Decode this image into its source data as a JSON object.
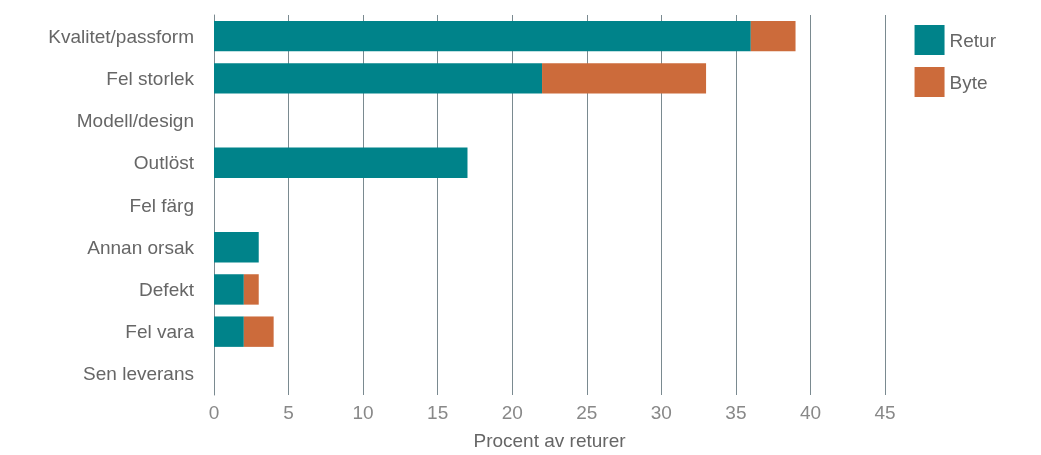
{
  "chart_data": {
    "type": "bar",
    "orientation": "horizontal",
    "stacked": true,
    "xlabel": "Procent av returer",
    "categories": [
      "Kvalitet/passform",
      "Fel storlek",
      "Modell/design",
      "Outlöst",
      "Fel färg",
      "Annan orsak",
      "Defekt",
      "Fel vara",
      "Sen leverans"
    ],
    "series": [
      {
        "name": "Retur",
        "color": "#00838a",
        "values": [
          36,
          22,
          0,
          17,
          0,
          3,
          2,
          2,
          0
        ]
      },
      {
        "name": "Byte",
        "color": "#cc6b3b",
        "values": [
          3,
          11,
          0,
          0,
          0,
          0,
          1,
          2,
          0
        ]
      }
    ],
    "xlim": [
      0,
      45
    ],
    "xticks": [
      0,
      5,
      10,
      15,
      20,
      25,
      30,
      35,
      40,
      45
    ],
    "grid": "x",
    "legend": "top right"
  }
}
